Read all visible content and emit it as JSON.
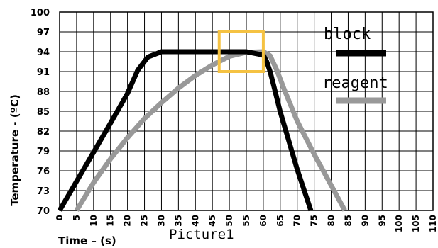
{
  "chart_data": {
    "type": "line",
    "xlabel": "Time – (s)",
    "ylabel": "Temperature - (ºC)",
    "caption": "Picture1",
    "xlim": [
      0,
      110
    ],
    "ylim": [
      70,
      100
    ],
    "x_ticks": [
      0,
      5,
      10,
      15,
      20,
      25,
      30,
      35,
      40,
      45,
      50,
      55,
      60,
      65,
      70,
      75,
      80,
      85,
      90,
      95,
      100,
      105,
      110
    ],
    "y_ticks": [
      70,
      73,
      76,
      79,
      82,
      85,
      88,
      91,
      94,
      97,
      100
    ],
    "grid": true,
    "legend_position": "top-right",
    "series": [
      {
        "name": "block",
        "color": "#000000",
        "x": [
          0,
          5,
          10,
          15,
          20,
          23,
          26,
          30,
          35,
          40,
          45,
          50,
          55,
          60,
          61,
          62,
          63,
          65,
          70,
          74
        ],
        "y": [
          70,
          74.4,
          78.8,
          83.2,
          87.7,
          91.2,
          93.2,
          94,
          94,
          94,
          94,
          94,
          94,
          93.5,
          92.5,
          91,
          89,
          84.9,
          76.2,
          70
        ]
      },
      {
        "name": "reagent",
        "color": "#999999",
        "x": [
          5,
          10,
          15,
          20,
          25,
          30,
          35,
          40,
          45,
          50,
          55,
          60,
          62,
          64,
          66,
          70,
          75,
          80,
          84
        ],
        "y": [
          70,
          74.2,
          77.8,
          81,
          83.9,
          86.3,
          88.5,
          90.4,
          92,
          93.3,
          93.9,
          94,
          93.4,
          91.2,
          88.5,
          83.5,
          78.5,
          73.8,
          70
        ]
      }
    ],
    "highlight_box": {
      "x": [
        47,
        60
      ],
      "y": [
        91,
        97
      ],
      "color": "#f5c242"
    }
  }
}
